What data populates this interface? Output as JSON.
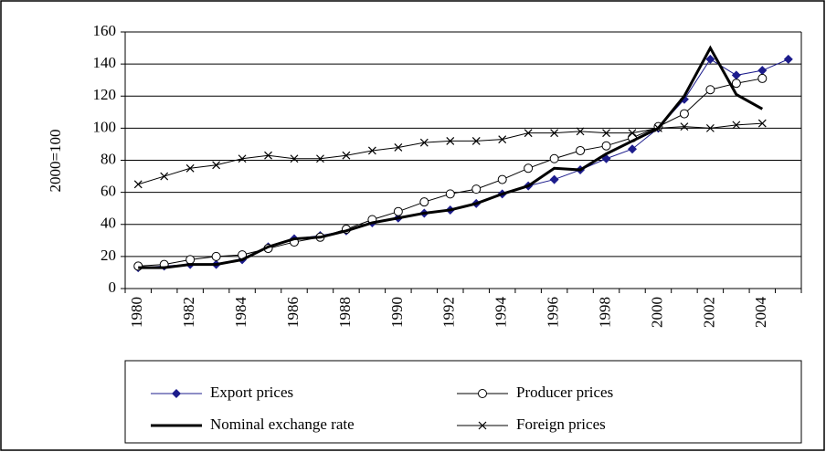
{
  "chart_data": {
    "type": "line",
    "y_label": "2000=100",
    "categories": [
      "1980",
      null,
      "1982",
      null,
      "1984",
      null,
      "1986",
      null,
      "1988",
      null,
      "1990",
      null,
      "1992",
      null,
      "1994",
      null,
      "1996",
      null,
      "1998",
      null,
      "2000",
      null,
      "2002",
      null,
      "2004",
      null
    ],
    "ylim": [
      0,
      160
    ],
    "yticks": [
      0,
      20,
      40,
      60,
      80,
      100,
      120,
      140,
      160
    ],
    "grid": true,
    "series": [
      {
        "name": "Export prices",
        "color": "#1c1c8c",
        "marker": "diamond",
        "values": [
          13,
          14,
          15,
          15,
          18,
          26,
          31,
          33,
          36,
          41,
          44,
          47,
          49,
          53,
          59,
          64,
          68,
          74,
          81,
          87,
          100,
          118,
          143,
          133,
          136,
          143
        ]
      },
      {
        "name": "Producer prices",
        "color": "#000000",
        "marker": "circle",
        "values": [
          14,
          15,
          18,
          20,
          21,
          25,
          29,
          32,
          37,
          43,
          48,
          54,
          59,
          62,
          68,
          75,
          81,
          86,
          89,
          94,
          101,
          109,
          124,
          128,
          131,
          null
        ]
      },
      {
        "name": "Nominal exchange rate",
        "color": "#000000",
        "marker": "none",
        "values": [
          13,
          13,
          15,
          15,
          18,
          26,
          31,
          32,
          36,
          41,
          44,
          47,
          49,
          53,
          59,
          64,
          75,
          74,
          84,
          92,
          100,
          120,
          150,
          121,
          112,
          null
        ]
      },
      {
        "name": "Foreign prices",
        "color": "#000000",
        "marker": "cross",
        "values": [
          65,
          70,
          75,
          77,
          81,
          83,
          81,
          81,
          83,
          86,
          88,
          91,
          92,
          92,
          93,
          97,
          97,
          98,
          97,
          97,
          100,
          101,
          100,
          102,
          103,
          null
        ]
      }
    ]
  }
}
